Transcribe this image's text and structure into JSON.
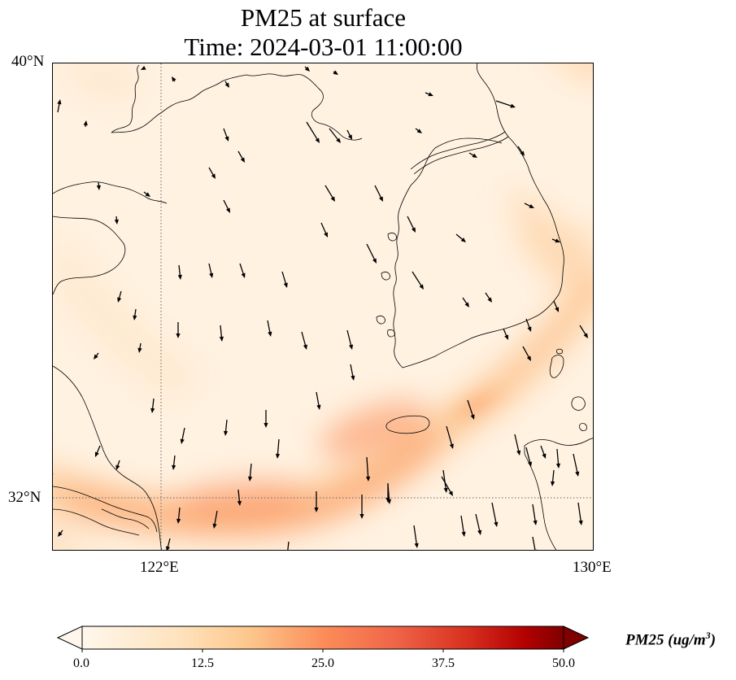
{
  "title_line1": "PM25 at surface",
  "title_line2": "Time: 2024-03-01 11:00:00",
  "map": {
    "lat_range": [
      31.0,
      40.0
    ],
    "lon_range": [
      120.0,
      130.0
    ],
    "lat_ticks": [
      {
        "value": 40,
        "label": "40°N"
      },
      {
        "value": 32,
        "label": "32°N"
      }
    ],
    "lon_ticks": [
      {
        "value": 122,
        "label": "122°E"
      },
      {
        "value": 130,
        "label": "130°E"
      }
    ],
    "gridlines": "dotted at 122°E and 32°N",
    "features": [
      "coastlines",
      "wind-vectors"
    ]
  },
  "colorbar": {
    "label": "PM25 (ug/m³)",
    "label_base": "PM25 (ug/m",
    "label_sup": "3",
    "label_close": ")",
    "min": 0.0,
    "max": 50.0,
    "ticks": [
      "0.0",
      "12.5",
      "25.0",
      "37.5",
      "50.0"
    ],
    "colormap": "OrRd",
    "extend": "both",
    "colors": [
      "#fff7ec",
      "#fdd49e",
      "#fc8d59",
      "#d7301f",
      "#7f0000"
    ]
  },
  "chart_data": {
    "type": "heatmap",
    "title": "PM25 at surface\nTime: 2024-03-01 11:00:00",
    "variable": "PM25",
    "units": "ug/m3",
    "time": "2024-03-01 11:00:00",
    "xlim": [
      120.0,
      130.0
    ],
    "ylim": [
      31.0,
      40.0
    ],
    "high_concentration_band": [
      {
        "lon": 122.8,
        "lat": 32.0,
        "value": 15
      },
      {
        "lon": 124.5,
        "lat": 32.4,
        "value": 12
      },
      {
        "lon": 126.0,
        "lat": 33.2,
        "value": 13
      },
      {
        "lon": 127.5,
        "lat": 34.3,
        "value": 9
      },
      {
        "lon": 129.3,
        "lat": 36.0,
        "value": 8
      }
    ],
    "background_value": 2
  }
}
